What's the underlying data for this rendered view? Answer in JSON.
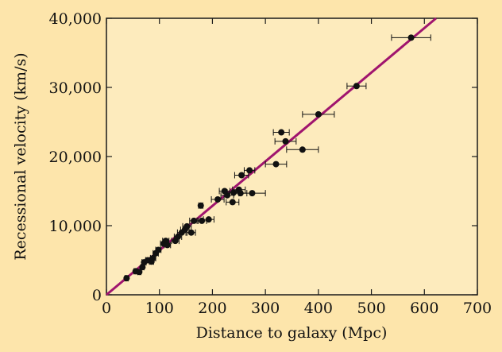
{
  "chart_data": {
    "type": "scatter",
    "xlabel": "Distance to galaxy (Mpc)",
    "ylabel": "Recessional velocity (km/s)",
    "xlim": [
      0,
      700
    ],
    "ylim": [
      0,
      40000
    ],
    "x_ticks": [
      0,
      100,
      200,
      300,
      400,
      500,
      600,
      700
    ],
    "y_ticks": [
      0,
      10000,
      20000,
      30000,
      40000
    ],
    "x_tick_labels": [
      "0",
      "100",
      "200",
      "300",
      "400",
      "500",
      "600",
      "700"
    ],
    "y_tick_labels": [
      "0",
      "10,000",
      "20,000",
      "30,000",
      "40,000"
    ],
    "grid": false,
    "colors": {
      "background": "#fde5ab",
      "plot_bg": "#fdebbd",
      "fit_line": "#a0156e",
      "points": "#111111"
    },
    "fit_line": {
      "x": [
        0,
        622
      ],
      "y": [
        0,
        40000
      ]
    },
    "points": [
      {
        "x": 38,
        "y": 2400,
        "xerr": 3
      },
      {
        "x": 55,
        "y": 3400,
        "xerr": 3
      },
      {
        "x": 62,
        "y": 3300,
        "xerr": 3
      },
      {
        "x": 68,
        "y": 4000,
        "xerr": 3
      },
      {
        "x": 71,
        "y": 4700,
        "xerr": 4
      },
      {
        "x": 78,
        "y": 5000,
        "xerr": 4
      },
      {
        "x": 85,
        "y": 4800,
        "xerr": 4
      },
      {
        "x": 88,
        "y": 5300,
        "xerr": 5
      },
      {
        "x": 93,
        "y": 6000,
        "xerr": 5
      },
      {
        "x": 98,
        "y": 6500,
        "xerr": 5
      },
      {
        "x": 108,
        "y": 7400,
        "xerr": 6
      },
      {
        "x": 112,
        "y": 7800,
        "xerr": 6
      },
      {
        "x": 115,
        "y": 7200,
        "xerr": 6
      },
      {
        "x": 130,
        "y": 7800,
        "xerr": 7
      },
      {
        "x": 135,
        "y": 8400,
        "xerr": 7
      },
      {
        "x": 142,
        "y": 9000,
        "xerr": 8
      },
      {
        "x": 148,
        "y": 9400,
        "xerr": 8
      },
      {
        "x": 152,
        "y": 9900,
        "xerr": 8
      },
      {
        "x": 160,
        "y": 9000,
        "xerr": 8
      },
      {
        "x": 165,
        "y": 10700,
        "xerr": 8
      },
      {
        "x": 178,
        "y": 12900,
        "xerr": 4
      },
      {
        "x": 180,
        "y": 10700,
        "xerr": 9
      },
      {
        "x": 193,
        "y": 10900,
        "xerr": 10
      },
      {
        "x": 210,
        "y": 13800,
        "xerr": 12
      },
      {
        "x": 223,
        "y": 15000,
        "xerr": 10
      },
      {
        "x": 228,
        "y": 14400,
        "xerr": 12
      },
      {
        "x": 238,
        "y": 13400,
        "xerr": 12
      },
      {
        "x": 240,
        "y": 14800,
        "xerr": 12
      },
      {
        "x": 250,
        "y": 15200,
        "xerr": 12
      },
      {
        "x": 253,
        "y": 14700,
        "xerr": 12
      },
      {
        "x": 255,
        "y": 17300,
        "xerr": 13
      },
      {
        "x": 270,
        "y": 18000,
        "xerr": 10
      },
      {
        "x": 275,
        "y": 14700,
        "xerr": 25
      },
      {
        "x": 320,
        "y": 18900,
        "xerr": 20
      },
      {
        "x": 330,
        "y": 23500,
        "xerr": 15
      },
      {
        "x": 338,
        "y": 22200,
        "xerr": 20
      },
      {
        "x": 370,
        "y": 21000,
        "xerr": 30
      },
      {
        "x": 400,
        "y": 26100,
        "xerr": 30
      },
      {
        "x": 472,
        "y": 30200,
        "xerr": 18
      },
      {
        "x": 575,
        "y": 37200,
        "xerr": 37
      }
    ]
  }
}
